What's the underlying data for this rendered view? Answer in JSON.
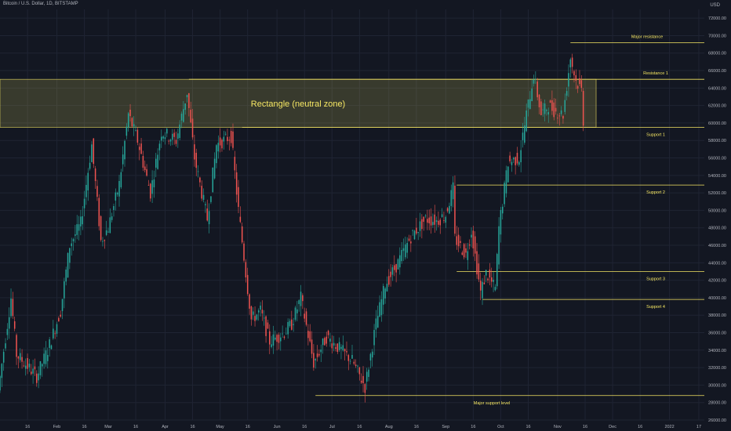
{
  "header": {
    "symbol_title": "Bitcoin / U.S. Dollar, 1D, BITSTAMP",
    "currency": "USD"
  },
  "chart_data": {
    "type": "candlestick",
    "title": "Bitcoin / U.S. Dollar, 1D, BITSTAMP",
    "ylim": [
      26000,
      73000
    ],
    "y_ticks": [
      26000,
      28000,
      30000,
      32000,
      34000,
      36000,
      38000,
      40000,
      42000,
      44000,
      46000,
      48000,
      50000,
      52000,
      54000,
      56000,
      58000,
      60000,
      62000,
      64000,
      66000,
      68000,
      70000,
      72000
    ],
    "x_ticks": [
      {
        "label": "16",
        "date": "2021-01-16"
      },
      {
        "label": "Feb",
        "date": "2021-02-01"
      },
      {
        "label": "16",
        "date": "2021-02-16"
      },
      {
        "label": "Mar",
        "date": "2021-03-01"
      },
      {
        "label": "16",
        "date": "2021-03-16"
      },
      {
        "label": "Apr",
        "date": "2021-04-01"
      },
      {
        "label": "16",
        "date": "2021-04-16"
      },
      {
        "label": "May",
        "date": "2021-05-01"
      },
      {
        "label": "16",
        "date": "2021-05-16"
      },
      {
        "label": "Jun",
        "date": "2021-06-01"
      },
      {
        "label": "16",
        "date": "2021-06-16"
      },
      {
        "label": "Jul",
        "date": "2021-07-01"
      },
      {
        "label": "16",
        "date": "2021-07-16"
      },
      {
        "label": "Aug",
        "date": "2021-08-01"
      },
      {
        "label": "16",
        "date": "2021-08-16"
      },
      {
        "label": "Sep",
        "date": "2021-09-01"
      },
      {
        "label": "16",
        "date": "2021-09-16"
      },
      {
        "label": "Oct",
        "date": "2021-10-01"
      },
      {
        "label": "16",
        "date": "2021-10-16"
      },
      {
        "label": "Nov",
        "date": "2021-11-01"
      },
      {
        "label": "16",
        "date": "2021-11-16"
      },
      {
        "label": "Dec",
        "date": "2021-12-01"
      },
      {
        "label": "16",
        "date": "2021-12-16"
      },
      {
        "label": "2022",
        "date": "2022-01-01"
      },
      {
        "label": "17",
        "date": "2022-01-17"
      }
    ],
    "x_start": "2021-01-01",
    "x_end": "2022-01-20",
    "price_series": [
      {
        "date": "2021-01-01",
        "close": 29400
      },
      {
        "date": "2021-01-08",
        "close": 40000
      },
      {
        "date": "2021-01-11",
        "close": 33500
      },
      {
        "date": "2021-01-22",
        "close": 31000
      },
      {
        "date": "2021-01-28",
        "close": 34000
      },
      {
        "date": "2021-02-04",
        "close": 38500
      },
      {
        "date": "2021-02-09",
        "close": 46000
      },
      {
        "date": "2021-02-15",
        "close": 48500
      },
      {
        "date": "2021-02-21",
        "close": 57500
      },
      {
        "date": "2021-02-26",
        "close": 46500
      },
      {
        "date": "2021-03-02",
        "close": 48000
      },
      {
        "date": "2021-03-08",
        "close": 53000
      },
      {
        "date": "2021-03-13",
        "close": 61000
      },
      {
        "date": "2021-03-18",
        "close": 58000
      },
      {
        "date": "2021-03-25",
        "close": 52000
      },
      {
        "date": "2021-03-31",
        "close": 59000
      },
      {
        "date": "2021-04-08",
        "close": 58000
      },
      {
        "date": "2021-04-14",
        "close": 63500
      },
      {
        "date": "2021-04-18",
        "close": 56000
      },
      {
        "date": "2021-04-25",
        "close": 49000
      },
      {
        "date": "2021-04-30",
        "close": 57500
      },
      {
        "date": "2021-05-08",
        "close": 58500
      },
      {
        "date": "2021-05-12",
        "close": 50000
      },
      {
        "date": "2021-05-19",
        "close": 37500
      },
      {
        "date": "2021-05-24",
        "close": 38500
      },
      {
        "date": "2021-05-29",
        "close": 35000
      },
      {
        "date": "2021-06-06",
        "close": 36000
      },
      {
        "date": "2021-06-10",
        "close": 37000
      },
      {
        "date": "2021-06-15",
        "close": 40000
      },
      {
        "date": "2021-06-22",
        "close": 32500
      },
      {
        "date": "2021-06-29",
        "close": 35500
      },
      {
        "date": "2021-07-07",
        "close": 34000
      },
      {
        "date": "2021-07-13",
        "close": 32800
      },
      {
        "date": "2021-07-20",
        "close": 29800
      },
      {
        "date": "2021-07-26",
        "close": 37000
      },
      {
        "date": "2021-07-31",
        "close": 41500
      },
      {
        "date": "2021-08-07",
        "close": 44000
      },
      {
        "date": "2021-08-14",
        "close": 47000
      },
      {
        "date": "2021-08-22",
        "close": 49000
      },
      {
        "date": "2021-08-28",
        "close": 48800
      },
      {
        "date": "2021-09-02",
        "close": 49500
      },
      {
        "date": "2021-09-06",
        "close": 52500
      },
      {
        "date": "2021-09-07",
        "close": 46800
      },
      {
        "date": "2021-09-13",
        "close": 44900
      },
      {
        "date": "2021-09-16",
        "close": 47700
      },
      {
        "date": "2021-09-21",
        "close": 40600
      },
      {
        "date": "2021-09-24",
        "close": 42800
      },
      {
        "date": "2021-09-29",
        "close": 41000
      },
      {
        "date": "2021-10-01",
        "close": 48000
      },
      {
        "date": "2021-10-06",
        "close": 55500
      },
      {
        "date": "2021-10-12",
        "close": 56000
      },
      {
        "date": "2021-10-16",
        "close": 61000
      },
      {
        "date": "2021-10-20",
        "close": 65500
      },
      {
        "date": "2021-10-24",
        "close": 61000
      },
      {
        "date": "2021-10-28",
        "close": 62000
      },
      {
        "date": "2021-11-01",
        "close": 61300
      },
      {
        "date": "2021-11-05",
        "close": 61000
      },
      {
        "date": "2021-11-09",
        "close": 67500
      },
      {
        "date": "2021-11-12",
        "close": 64800
      },
      {
        "date": "2021-11-15",
        "close": 63800
      },
      {
        "date": "2021-11-16",
        "close": 60300
      }
    ],
    "zone": {
      "label": "Rectangle (neutral zone)",
      "low": 59500,
      "high": 65000,
      "start": "2021-01-01",
      "end": "2021-11-22",
      "color": "#f5e663"
    },
    "levels": [
      {
        "label": "Major resistance",
        "price": 69200,
        "start": "2021-11-08"
      },
      {
        "label": "Resistance 1",
        "price": 65000,
        "start": "2021-04-14"
      },
      {
        "label": "Support 1",
        "price": 59500,
        "start": "2021-05-13"
      },
      {
        "label": "Support 2",
        "price": 52900,
        "start": "2021-09-07"
      },
      {
        "label": "Support 3",
        "price": 43000,
        "start": "2021-09-07"
      },
      {
        "label": "Support 4",
        "price": 39800,
        "start": "2021-09-21"
      },
      {
        "label": "Major support level",
        "price": 28800,
        "start": "2021-06-22"
      }
    ],
    "colors": {
      "up": "#26a69a",
      "down": "#ef5350",
      "annotation": "#f5e663",
      "grid": "#1f2433",
      "axis_text": "#b2b5be"
    }
  }
}
